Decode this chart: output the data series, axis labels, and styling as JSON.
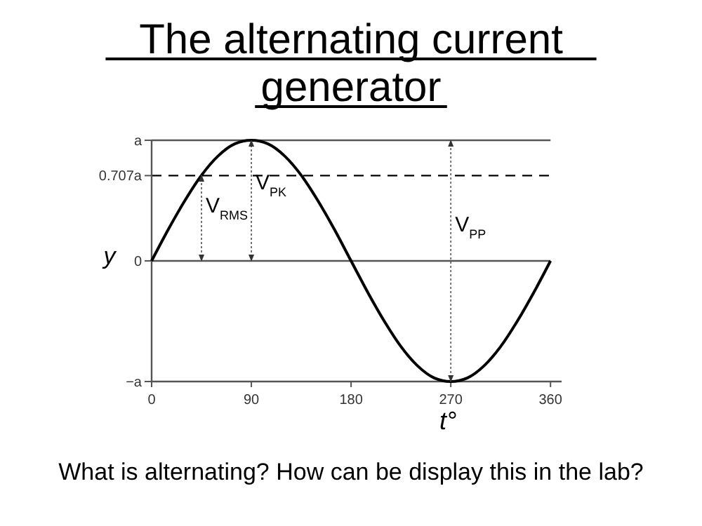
{
  "chart_data": {
    "type": "line",
    "title": "The alternating current generator",
    "xlabel": "t°",
    "ylabel": "y",
    "x": [
      0,
      15,
      30,
      45,
      60,
      75,
      90,
      105,
      120,
      135,
      150,
      165,
      180,
      195,
      210,
      225,
      240,
      255,
      270,
      285,
      300,
      315,
      330,
      345,
      360
    ],
    "series": [
      {
        "color": "#000000",
        "values": [
          0,
          0.26,
          0.5,
          0.71,
          0.87,
          0.97,
          1,
          0.97,
          0.87,
          0.71,
          0.5,
          0.26,
          0,
          -0.26,
          -0.5,
          -0.71,
          -0.87,
          -0.97,
          -1,
          -0.97,
          -0.87,
          -0.71,
          -0.5,
          -0.26,
          0
        ]
      },
      {
        "color": "#666666",
        "x": [
          45,
          45
        ],
        "values": [
          0,
          0.71
        ],
        "line_style": "dotted"
      },
      {
        "color": "#666666",
        "x": [
          90,
          90
        ],
        "values": [
          0,
          1
        ],
        "line_style": "dotted"
      },
      {
        "color": "#666666",
        "x": [
          270,
          270
        ],
        "values": [
          -1,
          1
        ],
        "line_style": "dotted"
      }
    ],
    "xlim": [
      0,
      370
    ],
    "xticks": [
      0,
      90,
      180,
      270,
      360
    ],
    "ylim": [
      -1,
      1
    ],
    "yticks": [
      {
        "value": -1,
        "label": "−a"
      },
      0,
      {
        "value": 0.707,
        "label": "0.707a"
      },
      {
        "value": 1,
        "label": "a"
      }
    ],
    "ref_lines": [
      {
        "axis": "y",
        "value": 1,
        "line_style": "solid",
        "color": "#555555"
      },
      {
        "axis": "y",
        "value": 0.707,
        "line_style": "dashed",
        "color": "#000000"
      },
      {
        "axis": "y",
        "value": 0,
        "line_style": "solid",
        "color": "#555555"
      }
    ],
    "annotations": [
      "V$_{RMS}$",
      "V$_{PK}$",
      "V$_{PP}$",
      "What is alternating? How can be display this in the lab?"
    ],
    "grid": false,
    "marker": "none",
    "line_style": "solid"
  }
}
